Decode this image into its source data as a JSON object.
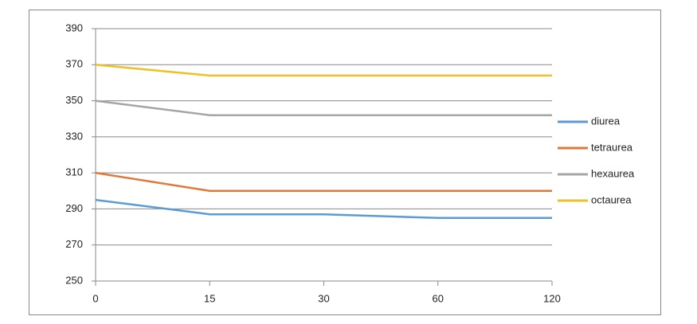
{
  "chart_data": {
    "type": "line",
    "categories": [
      "0",
      "15",
      "30",
      "60",
      "120"
    ],
    "series": [
      {
        "name": "diurea",
        "color": "#5b9bd5",
        "values": [
          295,
          287,
          287,
          285,
          285
        ]
      },
      {
        "name": "tetraurea",
        "color": "#e0783a",
        "values": [
          310,
          300,
          300,
          300,
          300
        ]
      },
      {
        "name": "hexaurea",
        "color": "#a5a5a5",
        "values": [
          350,
          342,
          342,
          342,
          342
        ]
      },
      {
        "name": "octaurea",
        "color": "#f0c020",
        "values": [
          370,
          364,
          364,
          364,
          364
        ]
      }
    ],
    "ylim": [
      250,
      390
    ],
    "yticks": [
      250,
      270,
      290,
      310,
      330,
      350,
      370,
      390
    ],
    "grid": true,
    "legend": "right"
  }
}
